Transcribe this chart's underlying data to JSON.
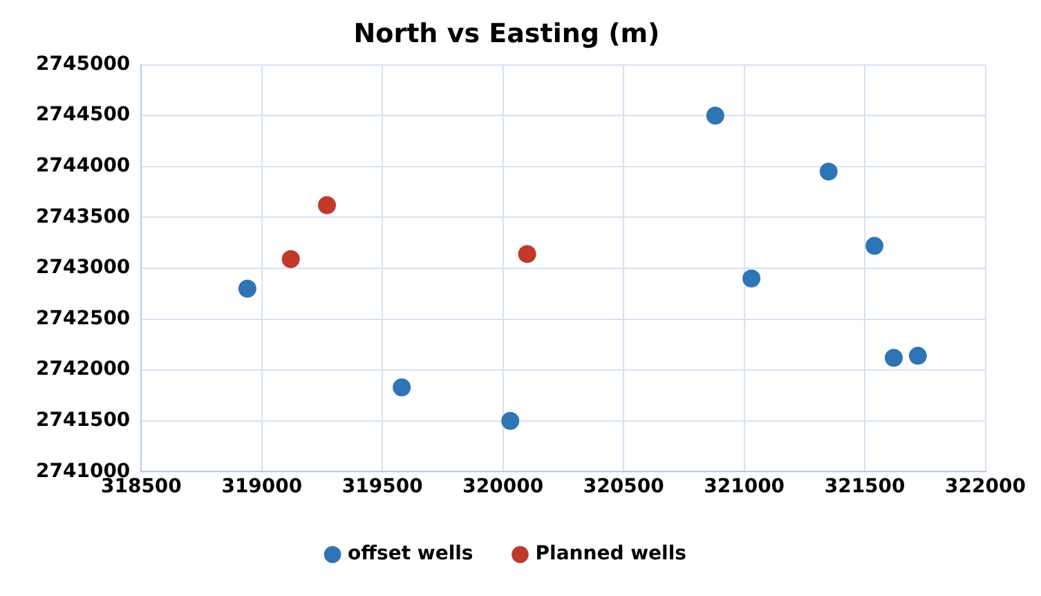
{
  "chart_data": {
    "type": "scatter",
    "title": "North vs Easting (m)",
    "xlim": [
      318500,
      322000
    ],
    "xticks": [
      318500,
      319000,
      319500,
      320000,
      320500,
      321000,
      321500,
      322000
    ],
    "ylim": [
      2741000,
      2745000
    ],
    "yticks": [
      2741000,
      2741500,
      2742000,
      2742500,
      2743000,
      2743500,
      2744000,
      2744500,
      2745000
    ],
    "grid": true,
    "legend": "bottom",
    "marker": "circle",
    "series": [
      {
        "name": "offset wells",
        "color": "#2e75b6",
        "x": [
          318940,
          319580,
          320030,
          320880,
          321030,
          321350,
          321540,
          321620,
          321720
        ],
        "values": [
          2742800,
          2741830,
          2741500,
          2744500,
          2742900,
          2743950,
          2743220,
          2742120,
          2742140
        ]
      },
      {
        "name": "Planned wells",
        "color": "#c0392b",
        "x": [
          319120,
          319270,
          320100
        ],
        "values": [
          2743090,
          2743620,
          2743140
        ]
      }
    ]
  }
}
